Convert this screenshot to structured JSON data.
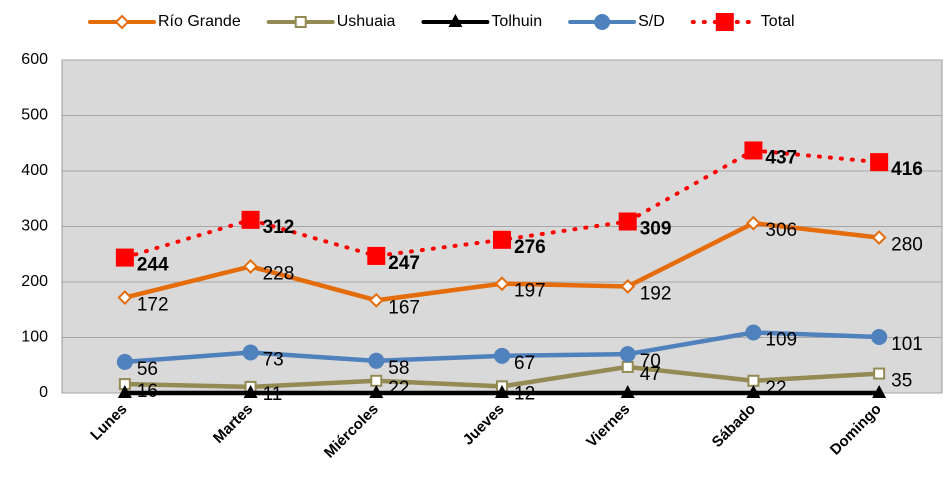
{
  "chart_data": {
    "type": "line",
    "categories": [
      "Lunes",
      "Martes",
      "Miércoles",
      "Jueves",
      "Viernes",
      "Sábado",
      "Domingo"
    ],
    "series": [
      {
        "name": "Río Grande",
        "color": "#e46c0a",
        "marker": "diamond",
        "values": [
          172,
          228,
          167,
          197,
          192,
          306,
          280
        ],
        "data_labels": true
      },
      {
        "name": "Ushuaia",
        "color": "#948a54",
        "marker": "square-small",
        "values": [
          16,
          11,
          22,
          12,
          47,
          22,
          35
        ],
        "data_labels": true
      },
      {
        "name": "Tolhuin",
        "color": "#000000",
        "marker": "triangle",
        "values": [
          0,
          0,
          0,
          0,
          0,
          0,
          0
        ],
        "data_labels": false
      },
      {
        "name": "S/D",
        "color": "#4f81bd",
        "marker": "circle",
        "values": [
          56,
          73,
          58,
          67,
          70,
          109,
          101
        ],
        "data_labels": true
      },
      {
        "name": "Total",
        "color": "#ff0000",
        "marker": "square",
        "dotted": true,
        "label_bold": true,
        "values": [
          244,
          312,
          247,
          276,
          309,
          437,
          416
        ],
        "data_labels": true
      }
    ],
    "ylim": [
      0,
      600
    ],
    "yticks": [
      0,
      100,
      200,
      300,
      400,
      500,
      600
    ],
    "grid": true,
    "legend": "top"
  }
}
